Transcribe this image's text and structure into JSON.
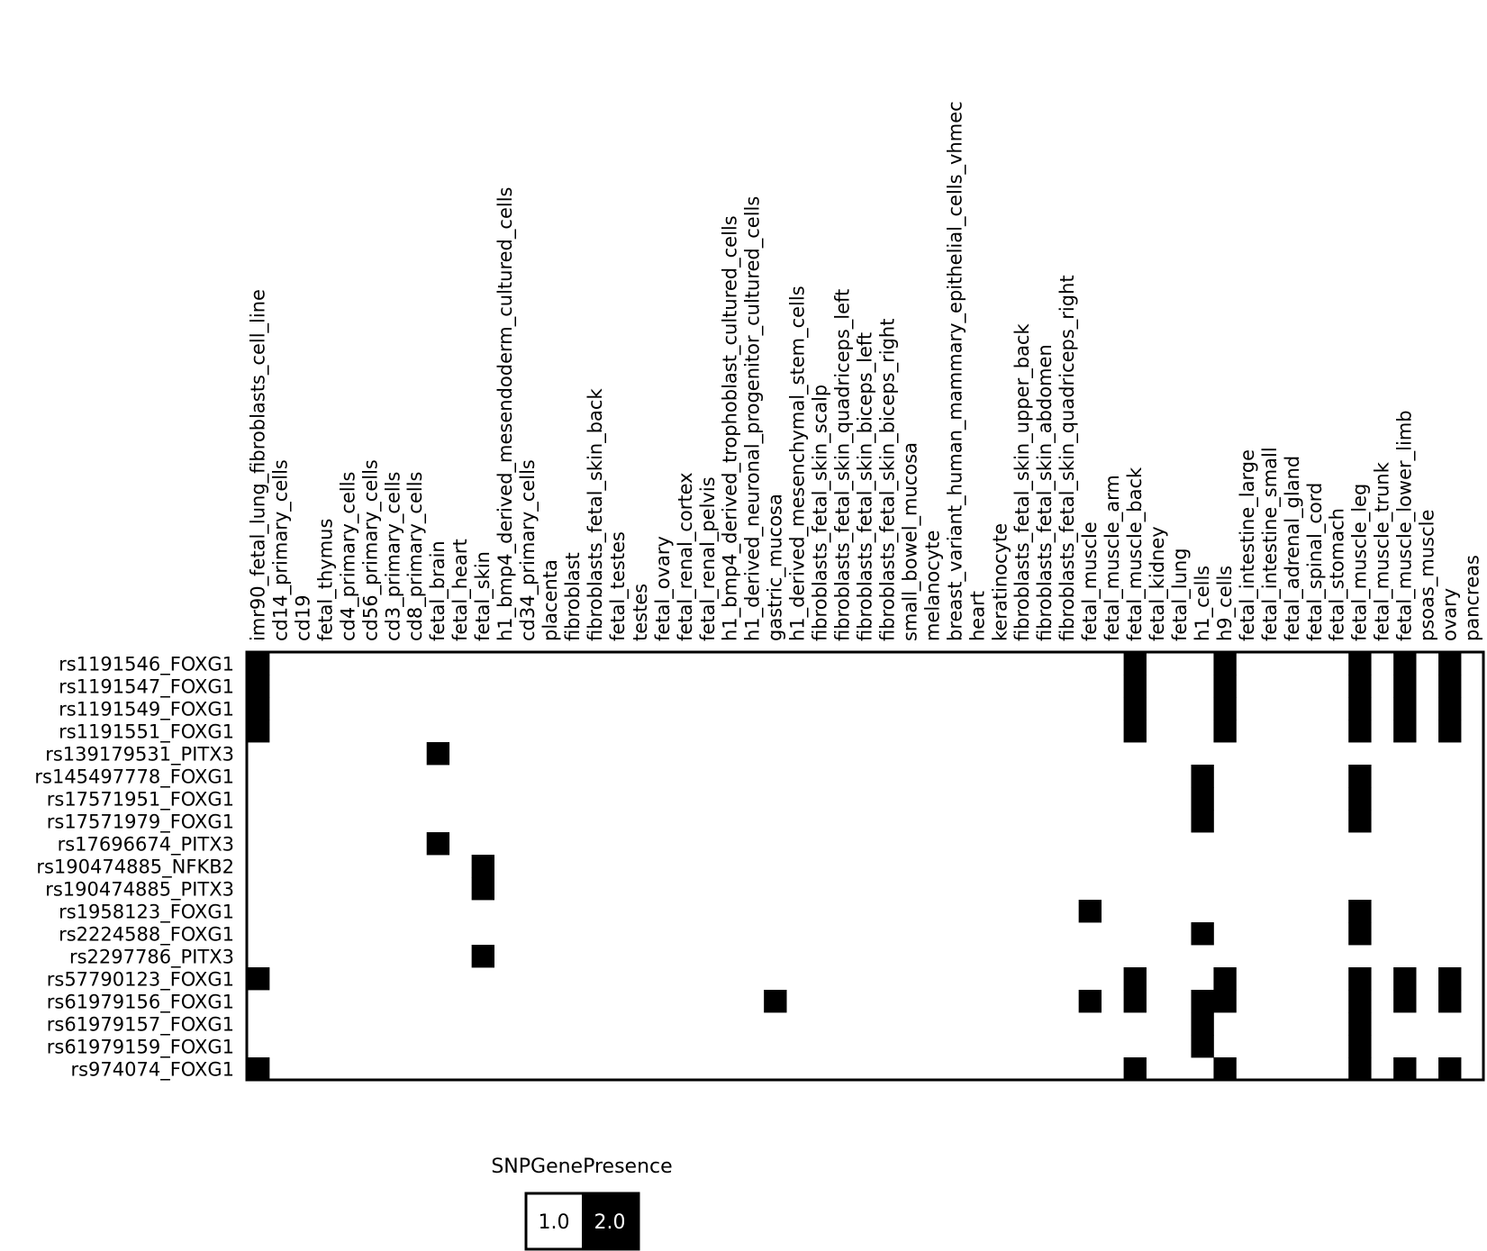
{
  "chart_data": {
    "type": "heatmap",
    "columns": [
      "imr90_fetal_lung_fibroblasts_cell_line",
      "cd14_primary_cells",
      "cd19",
      "fetal_thymus",
      "cd4_primary_cells",
      "cd56_primary_cells",
      "cd3_primary_cells",
      "cd8_primary_cells",
      "fetal_brain",
      "fetal_heart",
      "fetal_skin",
      "h1_bmp4_derived_mesendoderm_cultured_cells",
      "cd34_primary_cells",
      "placenta",
      "fibroblast",
      "fibroblasts_fetal_skin_back",
      "fetal_testes",
      "testes",
      "fetal_ovary",
      "fetal_renal_cortex",
      "fetal_renal_pelvis",
      "h1_bmp4_derived_trophoblast_cultured_cells",
      "h1_derived_neuronal_progenitor_cultured_cells",
      "gastric_mucosa",
      "h1_derived_mesenchymal_stem_cells",
      "fibroblasts_fetal_skin_scalp",
      "fibroblasts_fetal_skin_quadriceps_left",
      "fibroblasts_fetal_skin_biceps_left",
      "fibroblasts_fetal_skin_biceps_right",
      "small_bowel_mucosa",
      "melanocyte",
      "breast_variant_human_mammary_epithelial_cells_vhmec",
      "heart",
      "keratinocyte",
      "fibroblasts_fetal_skin_upper_back",
      "fibroblasts_fetal_skin_abdomen",
      "fibroblasts_fetal_skin_quadriceps_right",
      "fetal_muscle",
      "fetal_muscle_arm",
      "fetal_muscle_back",
      "fetal_kidney",
      "fetal_lung",
      "h1_cells",
      "h9_cells",
      "fetal_intestine_large",
      "fetal_intestine_small",
      "fetal_adrenal_gland",
      "fetal_spinal_cord",
      "fetal_stomach",
      "fetal_muscle_leg",
      "fetal_muscle_trunk",
      "fetal_muscle_lower_limb",
      "psoas_muscle",
      "ovary",
      "pancreas"
    ],
    "rows": [
      "rs1191546_FOXG1",
      "rs1191547_FOXG1",
      "rs1191549_FOXG1",
      "rs1191551_FOXG1",
      "rs139179531_PITX3",
      "rs145497778_FOXG1",
      "rs17571951_FOXG1",
      "rs17571979_FOXG1",
      "rs17696674_PITX3",
      "rs190474885_NFKB2",
      "rs190474885_PITX3",
      "rs1958123_FOXG1",
      "rs2224588_FOXG1",
      "rs2297786_PITX3",
      "rs57790123_FOXG1",
      "rs61979156_FOXG1",
      "rs61979157_FOXG1",
      "rs61979159_FOXG1",
      "rs974074_FOXG1"
    ],
    "presence": [
      {
        "row": "rs1191546_FOXG1",
        "columns": [
          "imr90_fetal_lung_fibroblasts_cell_line",
          "fetal_muscle_back",
          "h9_cells",
          "fetal_muscle_leg",
          "fetal_muscle_lower_limb",
          "ovary"
        ]
      },
      {
        "row": "rs1191547_FOXG1",
        "columns": [
          "imr90_fetal_lung_fibroblasts_cell_line",
          "fetal_muscle_back",
          "h9_cells",
          "fetal_muscle_leg",
          "fetal_muscle_lower_limb",
          "ovary"
        ]
      },
      {
        "row": "rs1191549_FOXG1",
        "columns": [
          "imr90_fetal_lung_fibroblasts_cell_line",
          "fetal_muscle_back",
          "h9_cells",
          "fetal_muscle_leg",
          "fetal_muscle_lower_limb",
          "ovary"
        ]
      },
      {
        "row": "rs1191551_FOXG1",
        "columns": [
          "imr90_fetal_lung_fibroblasts_cell_line",
          "fetal_muscle_back",
          "h9_cells",
          "fetal_muscle_leg",
          "fetal_muscle_lower_limb",
          "ovary"
        ]
      },
      {
        "row": "rs139179531_PITX3",
        "columns": [
          "fetal_brain"
        ]
      },
      {
        "row": "rs145497778_FOXG1",
        "columns": [
          "h1_cells",
          "fetal_muscle_leg"
        ]
      },
      {
        "row": "rs17571951_FOXG1",
        "columns": [
          "h1_cells",
          "fetal_muscle_leg"
        ]
      },
      {
        "row": "rs17571979_FOXG1",
        "columns": [
          "h1_cells",
          "fetal_muscle_leg"
        ]
      },
      {
        "row": "rs17696674_PITX3",
        "columns": [
          "fetal_brain"
        ]
      },
      {
        "row": "rs190474885_NFKB2",
        "columns": [
          "fetal_skin"
        ]
      },
      {
        "row": "rs190474885_PITX3",
        "columns": [
          "fetal_skin"
        ]
      },
      {
        "row": "rs1958123_FOXG1",
        "columns": [
          "fetal_muscle",
          "fetal_muscle_leg"
        ]
      },
      {
        "row": "rs2224588_FOXG1",
        "columns": [
          "h1_cells",
          "fetal_muscle_leg"
        ]
      },
      {
        "row": "rs2297786_PITX3",
        "columns": [
          "fetal_skin"
        ]
      },
      {
        "row": "rs57790123_FOXG1",
        "columns": [
          "imr90_fetal_lung_fibroblasts_cell_line",
          "fetal_muscle_back",
          "h9_cells",
          "fetal_muscle_leg",
          "fetal_muscle_lower_limb",
          "ovary"
        ]
      },
      {
        "row": "rs61979156_FOXG1",
        "columns": [
          "gastric_mucosa",
          "fetal_muscle",
          "fetal_muscle_back",
          "h1_cells",
          "h9_cells",
          "fetal_muscle_leg",
          "fetal_muscle_lower_limb",
          "ovary"
        ]
      },
      {
        "row": "rs61979157_FOXG1",
        "columns": [
          "h1_cells",
          "fetal_muscle_leg"
        ]
      },
      {
        "row": "rs61979159_FOXG1",
        "columns": [
          "h1_cells",
          "fetal_muscle_leg"
        ]
      },
      {
        "row": "rs974074_FOXG1",
        "columns": [
          "imr90_fetal_lung_fibroblasts_cell_line",
          "fetal_muscle_back",
          "h9_cells",
          "fetal_muscle_leg",
          "fetal_muscle_lower_limb",
          "ovary"
        ]
      }
    ],
    "legend": {
      "title": "SNPGenePresence",
      "entries": [
        {
          "label": "1.0",
          "color": "#ffffff"
        },
        {
          "label": "2.0",
          "color": "#000000"
        }
      ]
    },
    "colors": {
      "absent": "#ffffff",
      "present": "#000000"
    },
    "grid": false
  }
}
